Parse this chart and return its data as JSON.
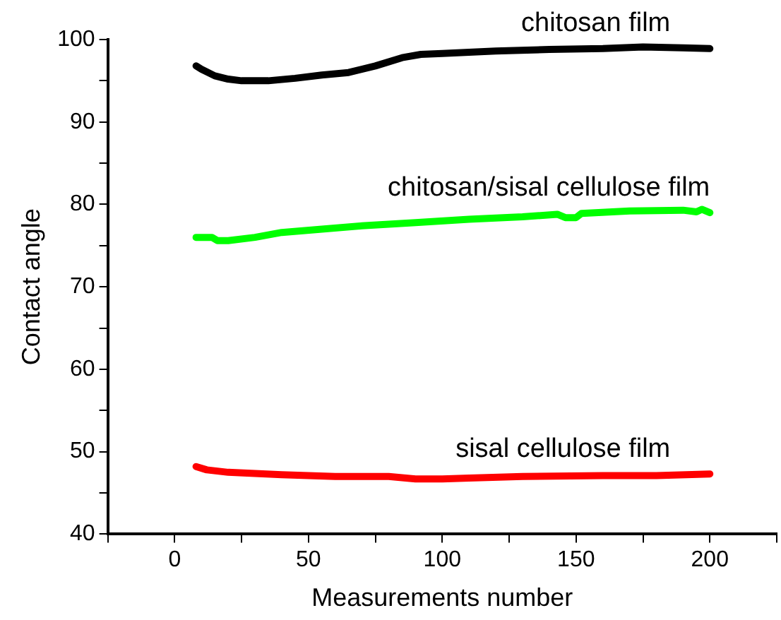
{
  "chart_data": {
    "type": "line",
    "xlabel": "Measurements number",
    "ylabel": "Contact angle",
    "xlim": [
      -25,
      225
    ],
    "ylim": [
      40,
      100
    ],
    "xticks": [
      {
        "value": -25,
        "label": null
      },
      0,
      {
        "value": 25,
        "label": null
      },
      50,
      {
        "value": 75,
        "label": null
      },
      100,
      {
        "value": 125,
        "label": null
      },
      150,
      {
        "value": 175,
        "label": null
      },
      200,
      {
        "value": 225,
        "label": null
      }
    ],
    "yticks": [
      40,
      {
        "value": 45,
        "label": null
      },
      50,
      {
        "value": 55,
        "label": null
      },
      60,
      {
        "value": 65,
        "label": null
      },
      70,
      {
        "value": 75,
        "label": null
      },
      80,
      {
        "value": 85,
        "label": null
      },
      90,
      {
        "value": 95,
        "label": null
      },
      100
    ],
    "grid": false,
    "legend": false,
    "marker": "none",
    "line_style": "solid",
    "series": [
      {
        "name": "chitosan film",
        "color": "#000000",
        "x": [
          8,
          10,
          15,
          20,
          25,
          35,
          45,
          55,
          65,
          75,
          85,
          92,
          100,
          120,
          140,
          160,
          175,
          190,
          200
        ],
        "values": [
          96.8,
          96.4,
          95.6,
          95.2,
          95.0,
          95.0,
          95.3,
          95.7,
          96.0,
          96.8,
          97.8,
          98.2,
          98.3,
          98.6,
          98.8,
          98.9,
          99.1,
          99.0,
          98.9
        ]
      },
      {
        "name": "chitosan/sisal cellulose film",
        "color": "#00ff00",
        "x": [
          8,
          14,
          16,
          20,
          30,
          40,
          55,
          70,
          90,
          110,
          130,
          143,
          146,
          150,
          152,
          170,
          190,
          195,
          197,
          200
        ],
        "values": [
          76.0,
          76.0,
          75.6,
          75.6,
          76.0,
          76.6,
          77.0,
          77.4,
          77.8,
          78.2,
          78.5,
          78.8,
          78.4,
          78.4,
          78.9,
          79.2,
          79.3,
          79.1,
          79.4,
          79.0
        ]
      },
      {
        "name": "sisal cellulose film",
        "color": "#ff0000",
        "x": [
          8,
          12,
          20,
          40,
          60,
          80,
          90,
          100,
          110,
          130,
          160,
          180,
          200
        ],
        "values": [
          48.2,
          47.8,
          47.5,
          47.2,
          47.0,
          47.0,
          46.7,
          46.7,
          46.8,
          47.0,
          47.1,
          47.1,
          47.3
        ]
      }
    ]
  }
}
